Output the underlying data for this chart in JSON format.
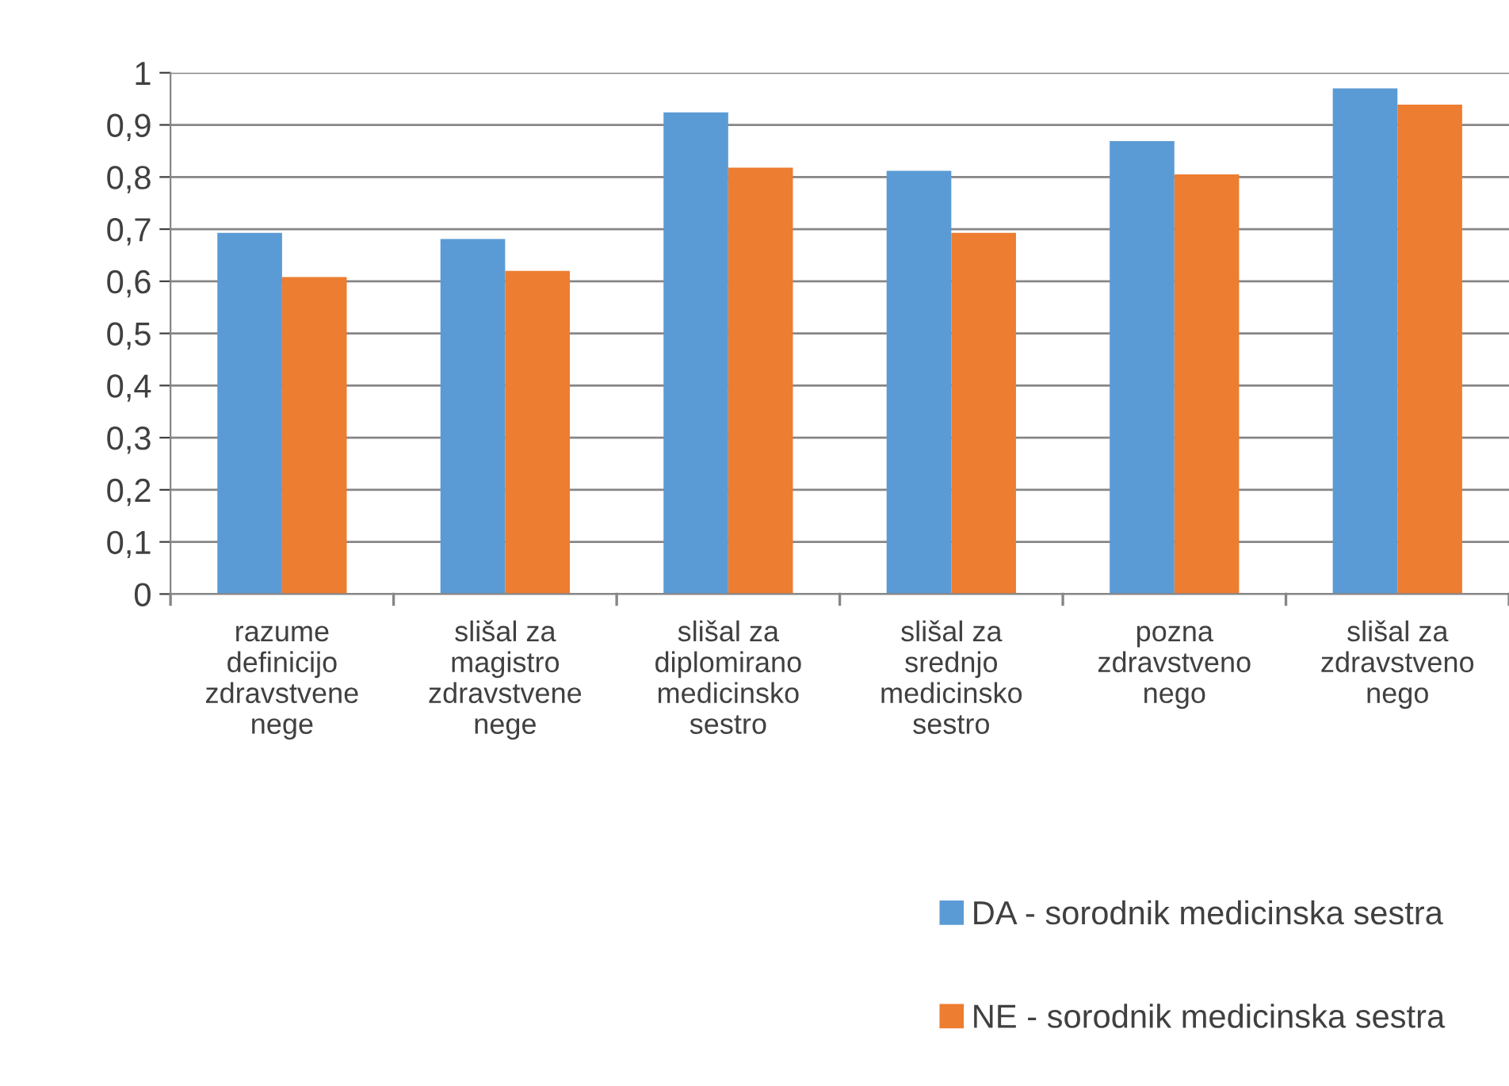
{
  "chart_data": {
    "type": "bar",
    "categories": [
      "razume\ndefinicijo\nzdravstvene\nnege",
      "slišal za\nmagistro\nzdravstvene\nnege",
      "slišal za\ndiplomirano\nmedicinsko\nsestro",
      "slišal za\nsrednjo\nmedicinsko\nsestro",
      "pozna\nzdravstveno\nnego",
      "slišal za\nzdravstveno\nnego"
    ],
    "series": [
      {
        "name": "DA - sorodnik medicinska sestra",
        "color": "#5b9bd5",
        "values": [
          0.693,
          0.681,
          0.924,
          0.812,
          0.869,
          0.97
        ]
      },
      {
        "name": "NE - sorodnik medicinska sestra",
        "color": "#ed7d31",
        "values": [
          0.608,
          0.62,
          0.818,
          0.693,
          0.805,
          0.939
        ]
      }
    ],
    "ylim": [
      0,
      1
    ],
    "yticks": [
      0,
      {
        "value": 0.1,
        "label": "0,1"
      },
      {
        "value": 0.2,
        "label": "0,2"
      },
      {
        "value": 0.3,
        "label": "0,3"
      },
      {
        "value": 0.4,
        "label": "0,4"
      },
      {
        "value": 0.5,
        "label": "0,5"
      },
      {
        "value": 0.6,
        "label": "0,6"
      },
      {
        "value": 0.7,
        "label": "0,7"
      },
      {
        "value": 0.8,
        "label": "0,8"
      },
      {
        "value": 0.9,
        "label": "0,9"
      },
      1
    ],
    "grid": "y",
    "legend": "bottom right"
  }
}
